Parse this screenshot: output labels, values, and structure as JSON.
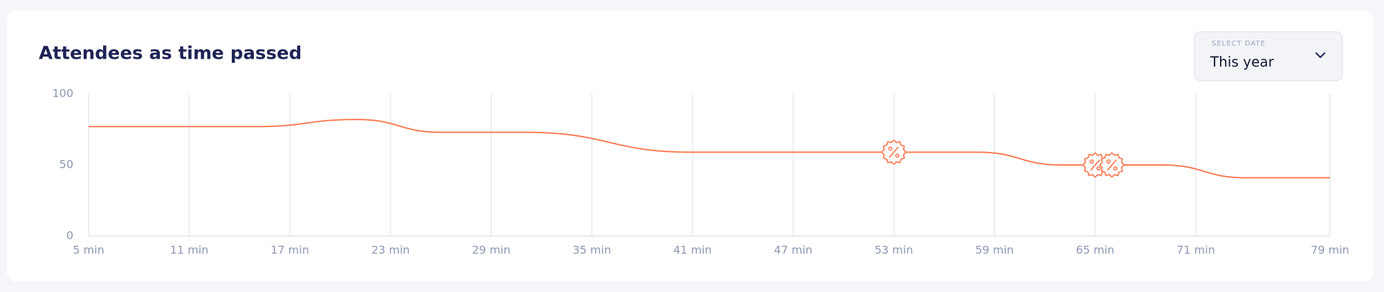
{
  "chart_data": {
    "type": "line",
    "title": "Attendees as time passed",
    "x": [
      5,
      15,
      21,
      26,
      31,
      41,
      53,
      58,
      63,
      65,
      66,
      69,
      74,
      79
    ],
    "values": [
      77,
      77,
      82,
      73,
      73,
      59,
      59,
      59,
      50,
      50,
      50,
      50,
      41,
      41
    ],
    "color": "#fd7a52",
    "markers": {
      "x": [
        53,
        65,
        66
      ],
      "y": [
        59,
        50,
        50
      ]
    },
    "xlim": [
      5,
      79
    ],
    "xticks": [
      {
        "value": 5,
        "label": "5 min"
      },
      {
        "value": 11,
        "label": "11 min"
      },
      {
        "value": 17,
        "label": "17 min"
      },
      {
        "value": 23,
        "label": "23 min"
      },
      {
        "value": 29,
        "label": "29 min"
      },
      {
        "value": 35,
        "label": "35 min"
      },
      {
        "value": 41,
        "label": "41 min"
      },
      {
        "value": 47,
        "label": "47 min"
      },
      {
        "value": 53,
        "label": "53 min"
      },
      {
        "value": 59,
        "label": "59 min"
      },
      {
        "value": 65,
        "label": "65 min"
      },
      {
        "value": 71,
        "label": "71 min"
      },
      {
        "value": 79,
        "label": "79 min"
      }
    ],
    "ylim": [
      0,
      100
    ],
    "yticks": [
      0,
      50,
      100
    ],
    "grid": true
  },
  "date_select": {
    "label": "SELECT DATE",
    "value": "This year"
  }
}
